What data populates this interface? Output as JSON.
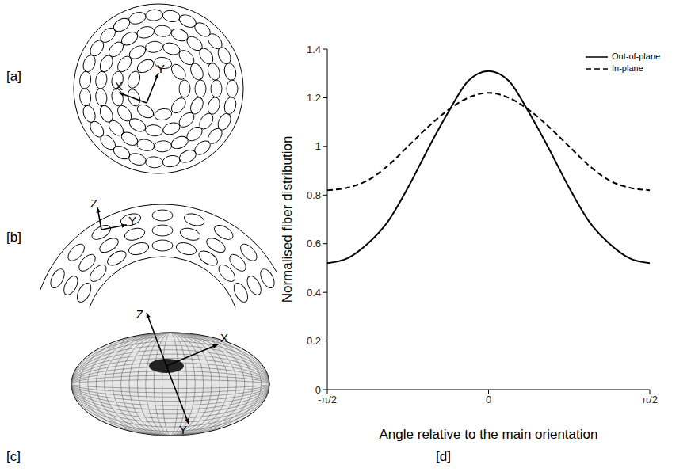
{
  "chart_data": {
    "type": "line",
    "panel_label": "[d]",
    "x_label": "Angle relative to the main orientation",
    "y_label": "Normalised fiber distribution",
    "x": [
      -1.5708,
      -1.3744,
      -1.1781,
      -0.9817,
      -0.7854,
      -0.589,
      -0.3927,
      -0.1963,
      0,
      0.1963,
      0.3927,
      0.589,
      0.7854,
      0.9817,
      1.1781,
      1.3744,
      1.5708
    ],
    "series": [
      {
        "name": "Out-of-plane",
        "color": "#000000",
        "line_style": "solid",
        "values": [
          0.52,
          0.54,
          0.6,
          0.69,
          0.83,
          0.99,
          1.14,
          1.27,
          1.31,
          1.27,
          1.14,
          0.99,
          0.83,
          0.69,
          0.6,
          0.54,
          0.52
        ]
      },
      {
        "name": "In-plane",
        "color": "#000000",
        "line_style": "dashed",
        "values": [
          0.82,
          0.83,
          0.86,
          0.92,
          1.0,
          1.08,
          1.15,
          1.2,
          1.22,
          1.2,
          1.15,
          1.08,
          1.0,
          0.92,
          0.86,
          0.83,
          0.82
        ]
      }
    ],
    "xlim": [
      -1.5708,
      1.5708
    ],
    "ylim": [
      0,
      1.4
    ],
    "xticks": [
      {
        "value": -1.5708,
        "label": "-π/2"
      },
      0,
      {
        "value": 1.5708,
        "label": "π/2"
      }
    ],
    "yticks": [
      0,
      0.2,
      0.4,
      0.6,
      0.8,
      1,
      1.2,
      1.4
    ],
    "grid": false,
    "legend": "upper right"
  },
  "diagrams": [
    {
      "label": "[a]",
      "axes": [
        "X",
        "Y"
      ]
    },
    {
      "label": "[b]",
      "axes": [
        "Z",
        "Y"
      ]
    },
    {
      "label": "[c]",
      "axes": [
        "Z",
        "X",
        "Y"
      ]
    }
  ]
}
